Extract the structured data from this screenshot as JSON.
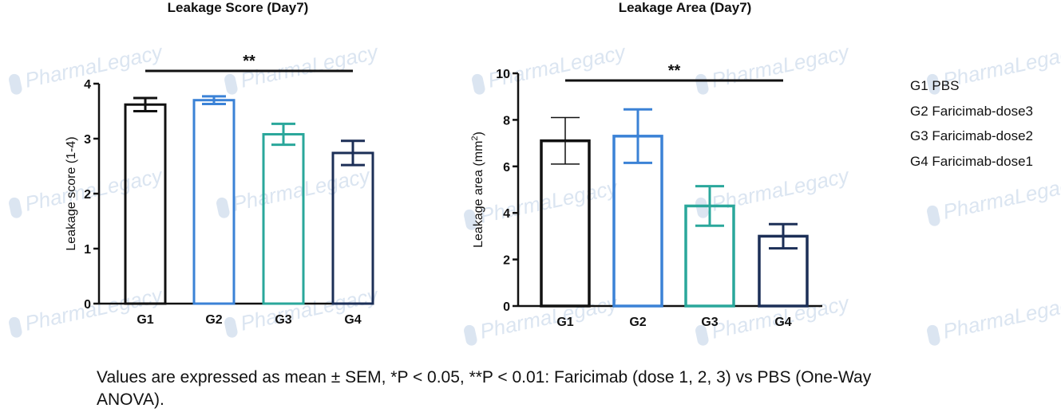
{
  "chart_data": [
    {
      "type": "bar",
      "title": "Leakage Score (Day7)",
      "xlabel": "",
      "ylabel": "Leakage score (1-4)",
      "ylim": [
        0,
        4
      ],
      "yticks": [
        0,
        1,
        2,
        3,
        4
      ],
      "categories": [
        "G1",
        "G2",
        "G3",
        "G4"
      ],
      "values": [
        3.62,
        3.7,
        3.08,
        2.74
      ],
      "errors": [
        0.12,
        0.07,
        0.19,
        0.22
      ],
      "colors": [
        "#111111",
        "#3b82d6",
        "#2aa79b",
        "#1c2f57"
      ],
      "grid": false,
      "annotation": {
        "text": "**",
        "from": "G1",
        "to": "G4"
      }
    },
    {
      "type": "bar",
      "title": "Leakage Area (Day7)",
      "xlabel": "",
      "ylabel": "Leakage area (mm²)",
      "ylim": [
        0,
        10
      ],
      "yticks": [
        0,
        2,
        4,
        6,
        8,
        10
      ],
      "categories": [
        "G1",
        "G2",
        "G3",
        "G4"
      ],
      "values": [
        7.1,
        7.3,
        4.3,
        3.0
      ],
      "errors": [
        1.0,
        1.15,
        0.85,
        0.52
      ],
      "colors": [
        "#111111",
        "#3b82d6",
        "#2aa79b",
        "#1c2f57"
      ],
      "grid": false,
      "annotation": {
        "text": "**",
        "from": "G1",
        "to": "G4"
      }
    }
  ],
  "legend": {
    "placement": "right",
    "items": [
      "G1 PBS",
      "G2 Faricimab-dose3",
      "G3 Faricimab-dose2",
      "G4 Faricimab-dose1"
    ]
  },
  "caption": {
    "text": "Values are expressed as mean ± SEM, *P < 0.05, **P < 0.01: Faricimab (dose 1, 2, 3) vs PBS (One-Way ANOVA)."
  },
  "watermark": {
    "text": "PharmaLegacy"
  }
}
